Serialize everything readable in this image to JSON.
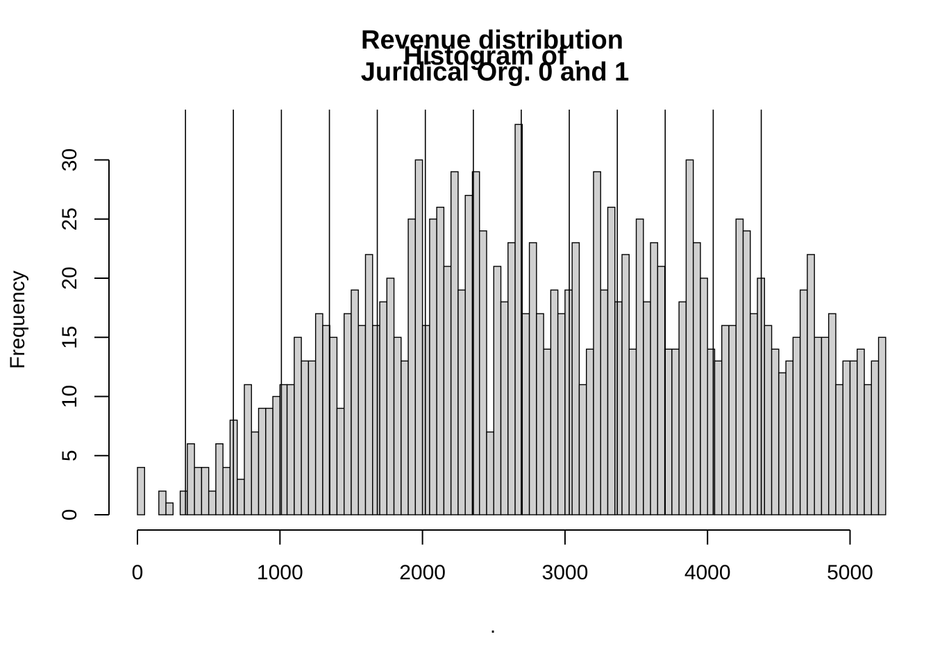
{
  "chart_data": {
    "type": "bar",
    "title_lines": [
      "Revenue distribution",
      "Juridical Org. 0 and 1"
    ],
    "overlay_title": "Histogram of .",
    "xlabel": ".",
    "ylabel": "Frequency",
    "bin_width": 50,
    "xlim": [
      0,
      5200
    ],
    "ylim": [
      0,
      33
    ],
    "x_ticks": [
      0,
      1000,
      2000,
      3000,
      4000,
      5000
    ],
    "y_ticks": [
      0,
      5,
      10,
      15,
      20,
      25,
      30
    ],
    "values": [
      4,
      0,
      0,
      2,
      1,
      0,
      2,
      6,
      4,
      4,
      2,
      6,
      4,
      8,
      3,
      11,
      7,
      9,
      9,
      10,
      11,
      11,
      15,
      13,
      13,
      17,
      16,
      15,
      9,
      17,
      19,
      16,
      22,
      16,
      18,
      20,
      15,
      13,
      25,
      30,
      16,
      25,
      26,
      21,
      29,
      19,
      27,
      29,
      24,
      7,
      21,
      18,
      23,
      33,
      17,
      23,
      17,
      14,
      19,
      17,
      19,
      23,
      11,
      14,
      29,
      19,
      26,
      18,
      22,
      14,
      25,
      18,
      23,
      21,
      14,
      14,
      18,
      30,
      23,
      20,
      14,
      13,
      16,
      16,
      25,
      24,
      17,
      20,
      16,
      14,
      12,
      13,
      15,
      19,
      22,
      15,
      15,
      17,
      11,
      13,
      13,
      14,
      11,
      13,
      15
    ],
    "vertical_lines": [
      337,
      673,
      1010,
      1347,
      1683,
      2020,
      2357,
      2693,
      3030,
      3367,
      3703,
      4040,
      4377
    ],
    "grid": false,
    "legend": "none"
  }
}
